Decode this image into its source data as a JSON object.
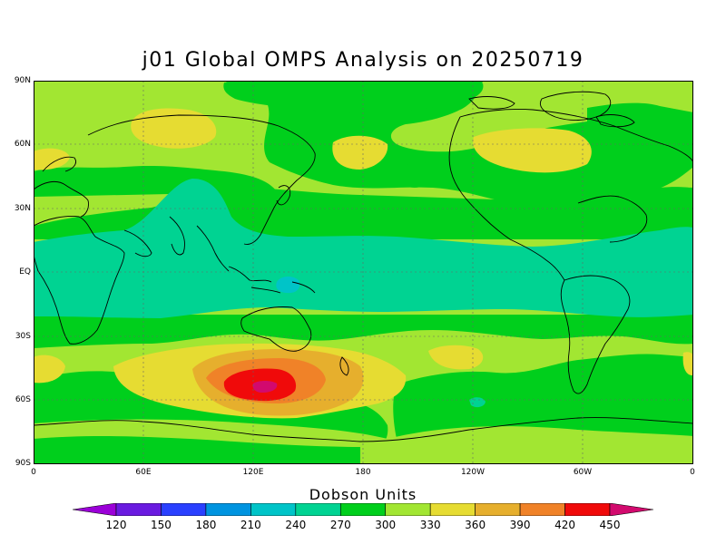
{
  "title": "j01 Global OMPS Analysis on 20250719",
  "map": {
    "lat_labels": [
      "90N",
      "60N",
      "30N",
      "EQ",
      "30S",
      "60S",
      "90S"
    ],
    "lon_labels": [
      "0",
      "60E",
      "120E",
      "180",
      "120W",
      "60W",
      "0"
    ]
  },
  "colorbar": {
    "title": "Dobson Units",
    "ticks": [
      "120",
      "150",
      "180",
      "210",
      "240",
      "270",
      "300",
      "330",
      "360",
      "390",
      "420",
      "450"
    ],
    "colors": [
      "#9b00d8",
      "#6a1ae0",
      "#2a40ff",
      "#0094e0",
      "#00c4c8",
      "#00d392",
      "#00cf1c",
      "#a2e632",
      "#e6dc32",
      "#e6af2d",
      "#f08228",
      "#f00a0a",
      "#d20a6e"
    ]
  },
  "colors": {
    "land_outline": "#000000",
    "gridline": "#666666"
  }
}
